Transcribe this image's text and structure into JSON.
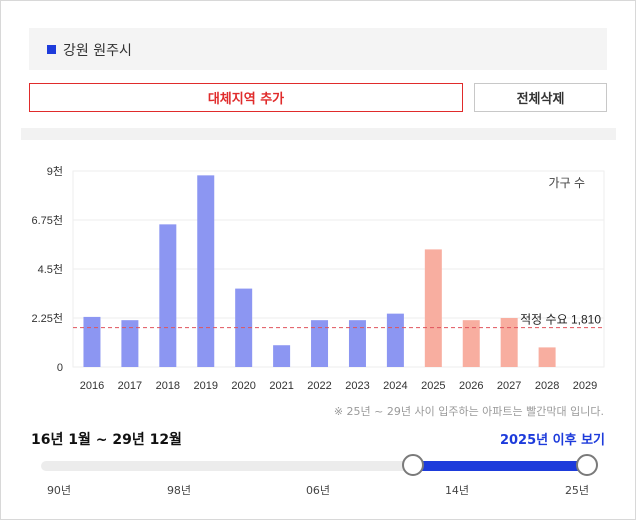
{
  "region": {
    "name": "강원 원주시"
  },
  "buttons": {
    "add": "대체지역 추가",
    "delete": "전체삭제"
  },
  "chart_data": {
    "type": "bar",
    "categories": [
      "2016",
      "2017",
      "2018",
      "2019",
      "2020",
      "2021",
      "2022",
      "2023",
      "2024",
      "2025",
      "2026",
      "2027",
      "2028",
      "2029"
    ],
    "values": [
      2300,
      2150,
      6550,
      8800,
      3600,
      1000,
      2150,
      2150,
      2450,
      5400,
      2150,
      2250,
      900,
      0
    ],
    "ylim": [
      0,
      9000
    ],
    "y_ticks": [
      0,
      2250,
      4500,
      6750,
      9000
    ],
    "y_tick_labels": [
      "0",
      "2.25천",
      "4.5천",
      "6.75천",
      "9천"
    ],
    "series_label": "가구 수",
    "reference_line": {
      "label": "적정 수요 1,810",
      "value": 1810,
      "color": "#e0535c"
    },
    "past_color": "#8c96f2",
    "future_color": "#f8aea0",
    "future_from": "2025",
    "grid": true
  },
  "note": "※ 25년 ~ 29년 사이 입주하는 아파트는 빨간막대 입니다.",
  "slider": {
    "range_label": "16년 1월 ~ 29년 12월",
    "after_link": "2025년 이후 보기",
    "ticks": [
      "90년",
      "98년",
      "06년",
      "14년",
      "25년"
    ],
    "selected_start": "2016",
    "selected_end": "2029",
    "accent": "#1d3bdb"
  }
}
